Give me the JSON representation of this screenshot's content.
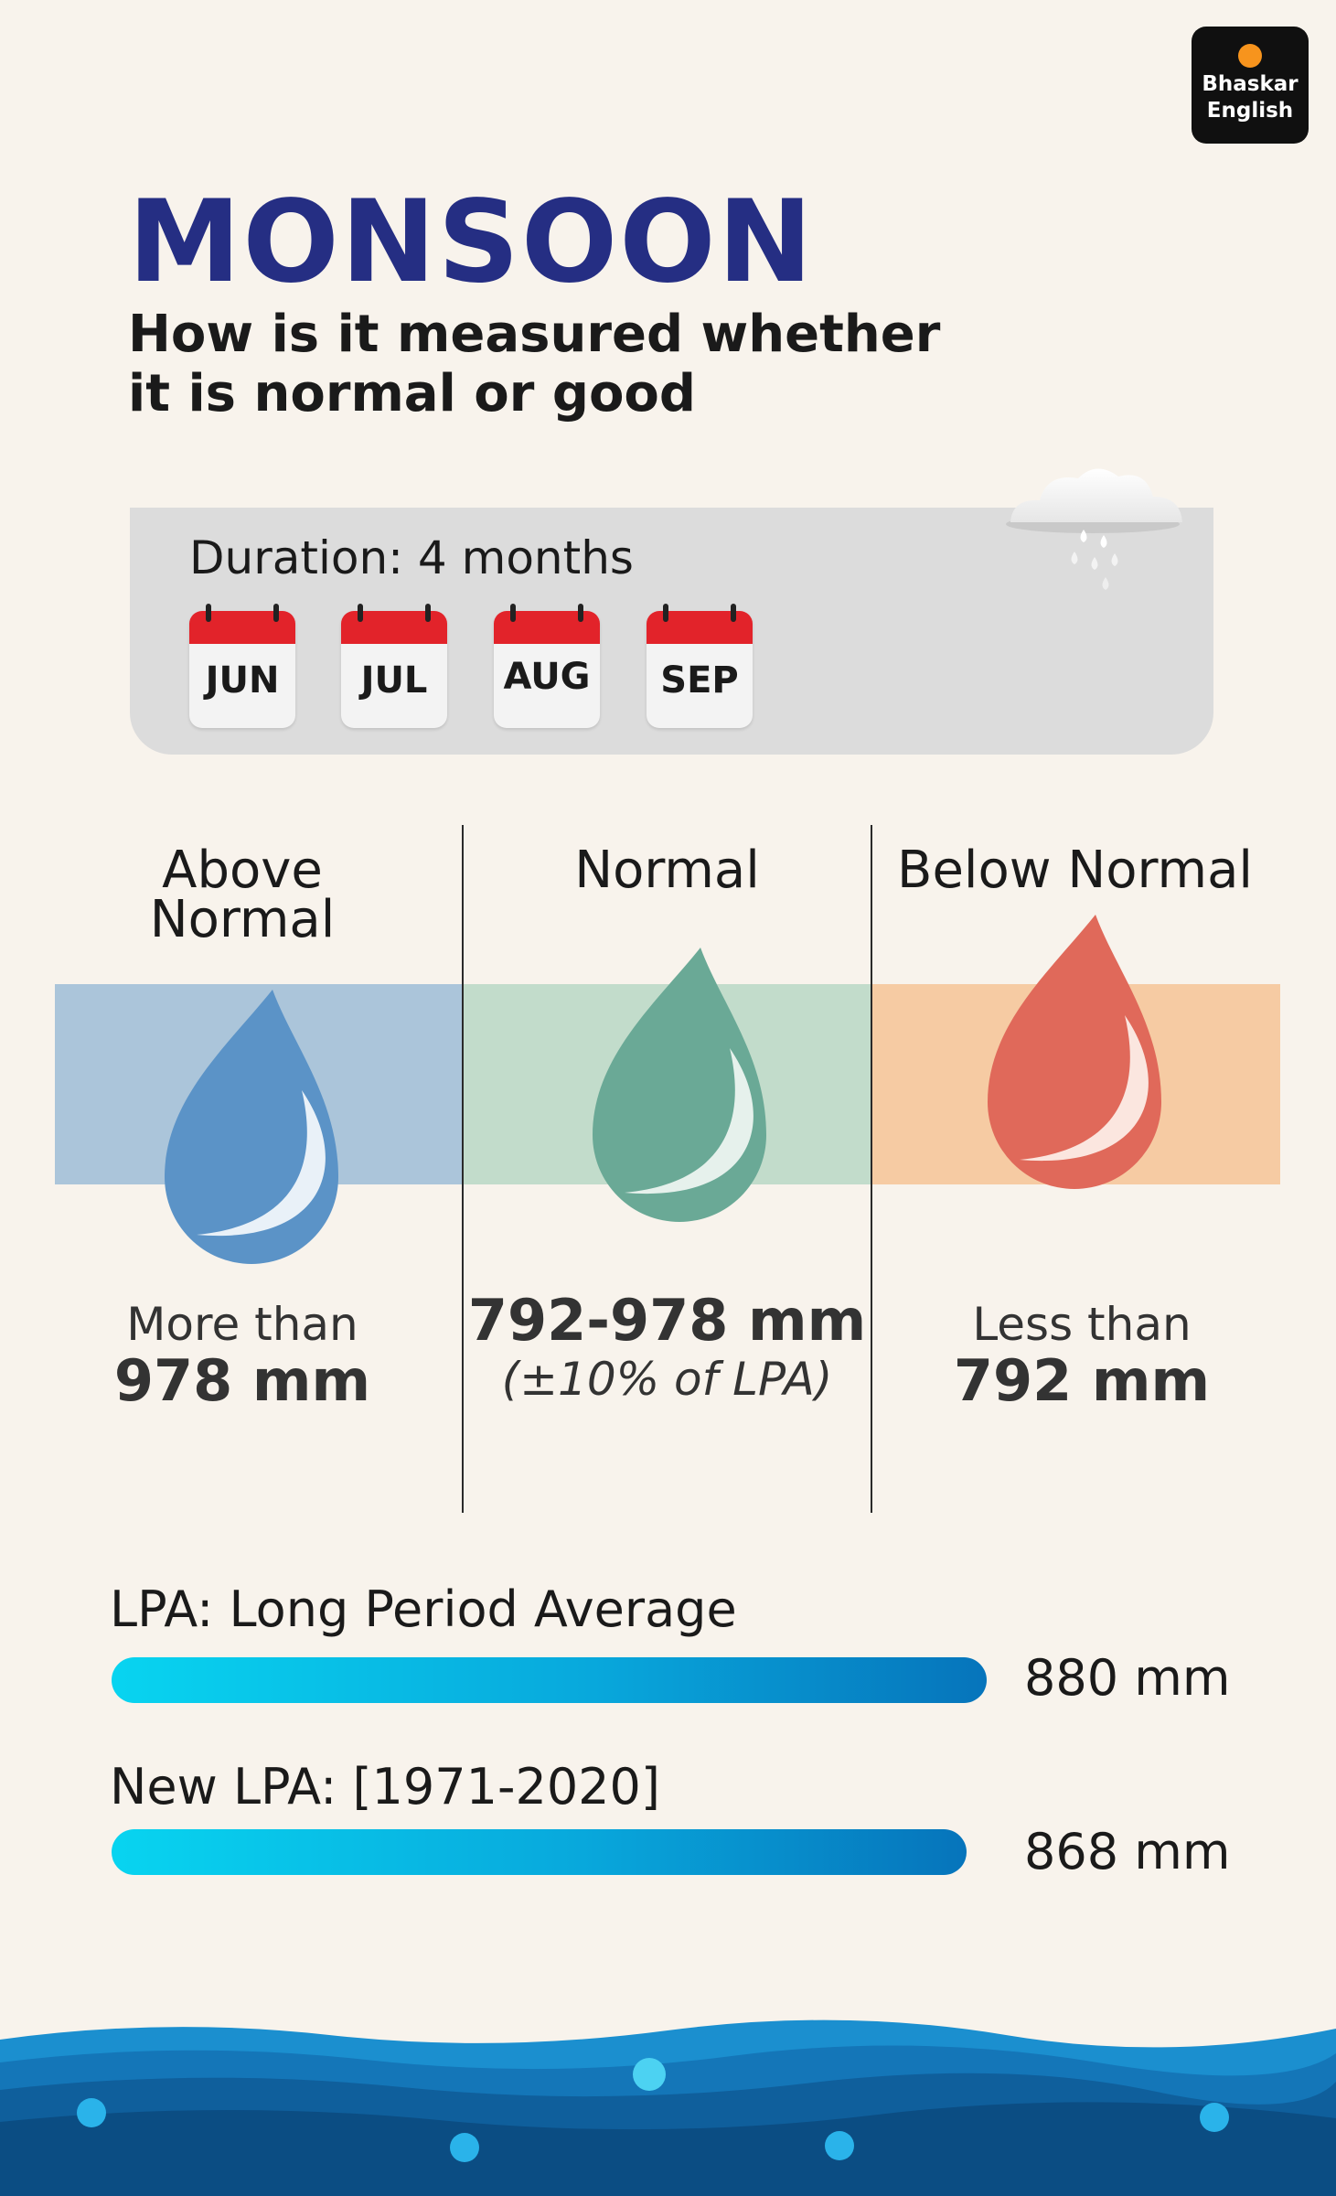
{
  "brand": {
    "logo_line1": "Bhaskar",
    "logo_line2": "English",
    "logo_dot_color": "#f7941d"
  },
  "header": {
    "title": "MONSOON",
    "subtitle_line1": "How is it measured whether",
    "subtitle_line2": "it is normal or good"
  },
  "duration": {
    "label": "Duration: 4 months",
    "months": [
      "JUN",
      "JUL",
      "AUG",
      "SEP"
    ],
    "icon": "rain-cloud-icon",
    "calendar_color": "#e2232a"
  },
  "categories": [
    {
      "label_line1": "Above",
      "label_line2": "Normal",
      "desc_line1": "More than",
      "desc_line2": "978 mm",
      "band_color": "#abc5da",
      "drop_color": "#5b93c7",
      "icon": "water-drop-icon"
    },
    {
      "label_line1": "Normal",
      "desc_line1": "792-978 mm",
      "desc_line2": "(±10% of LPA)",
      "band_color": "#c2dccb",
      "drop_color": "#6aa996",
      "icon": "water-drop-icon"
    },
    {
      "label_line1": "Below Normal",
      "desc_line1": "Less than",
      "desc_line2": "792 mm",
      "band_color": "#f6cba3",
      "drop_color": "#e0695a",
      "icon": "water-drop-icon"
    }
  ],
  "lpa": [
    {
      "label": "LPA: Long Period Average",
      "value": "880 mm",
      "amount_mm": 880
    },
    {
      "label": "New LPA: [1971-2020]",
      "value": "868 mm",
      "amount_mm": 868
    }
  ]
}
